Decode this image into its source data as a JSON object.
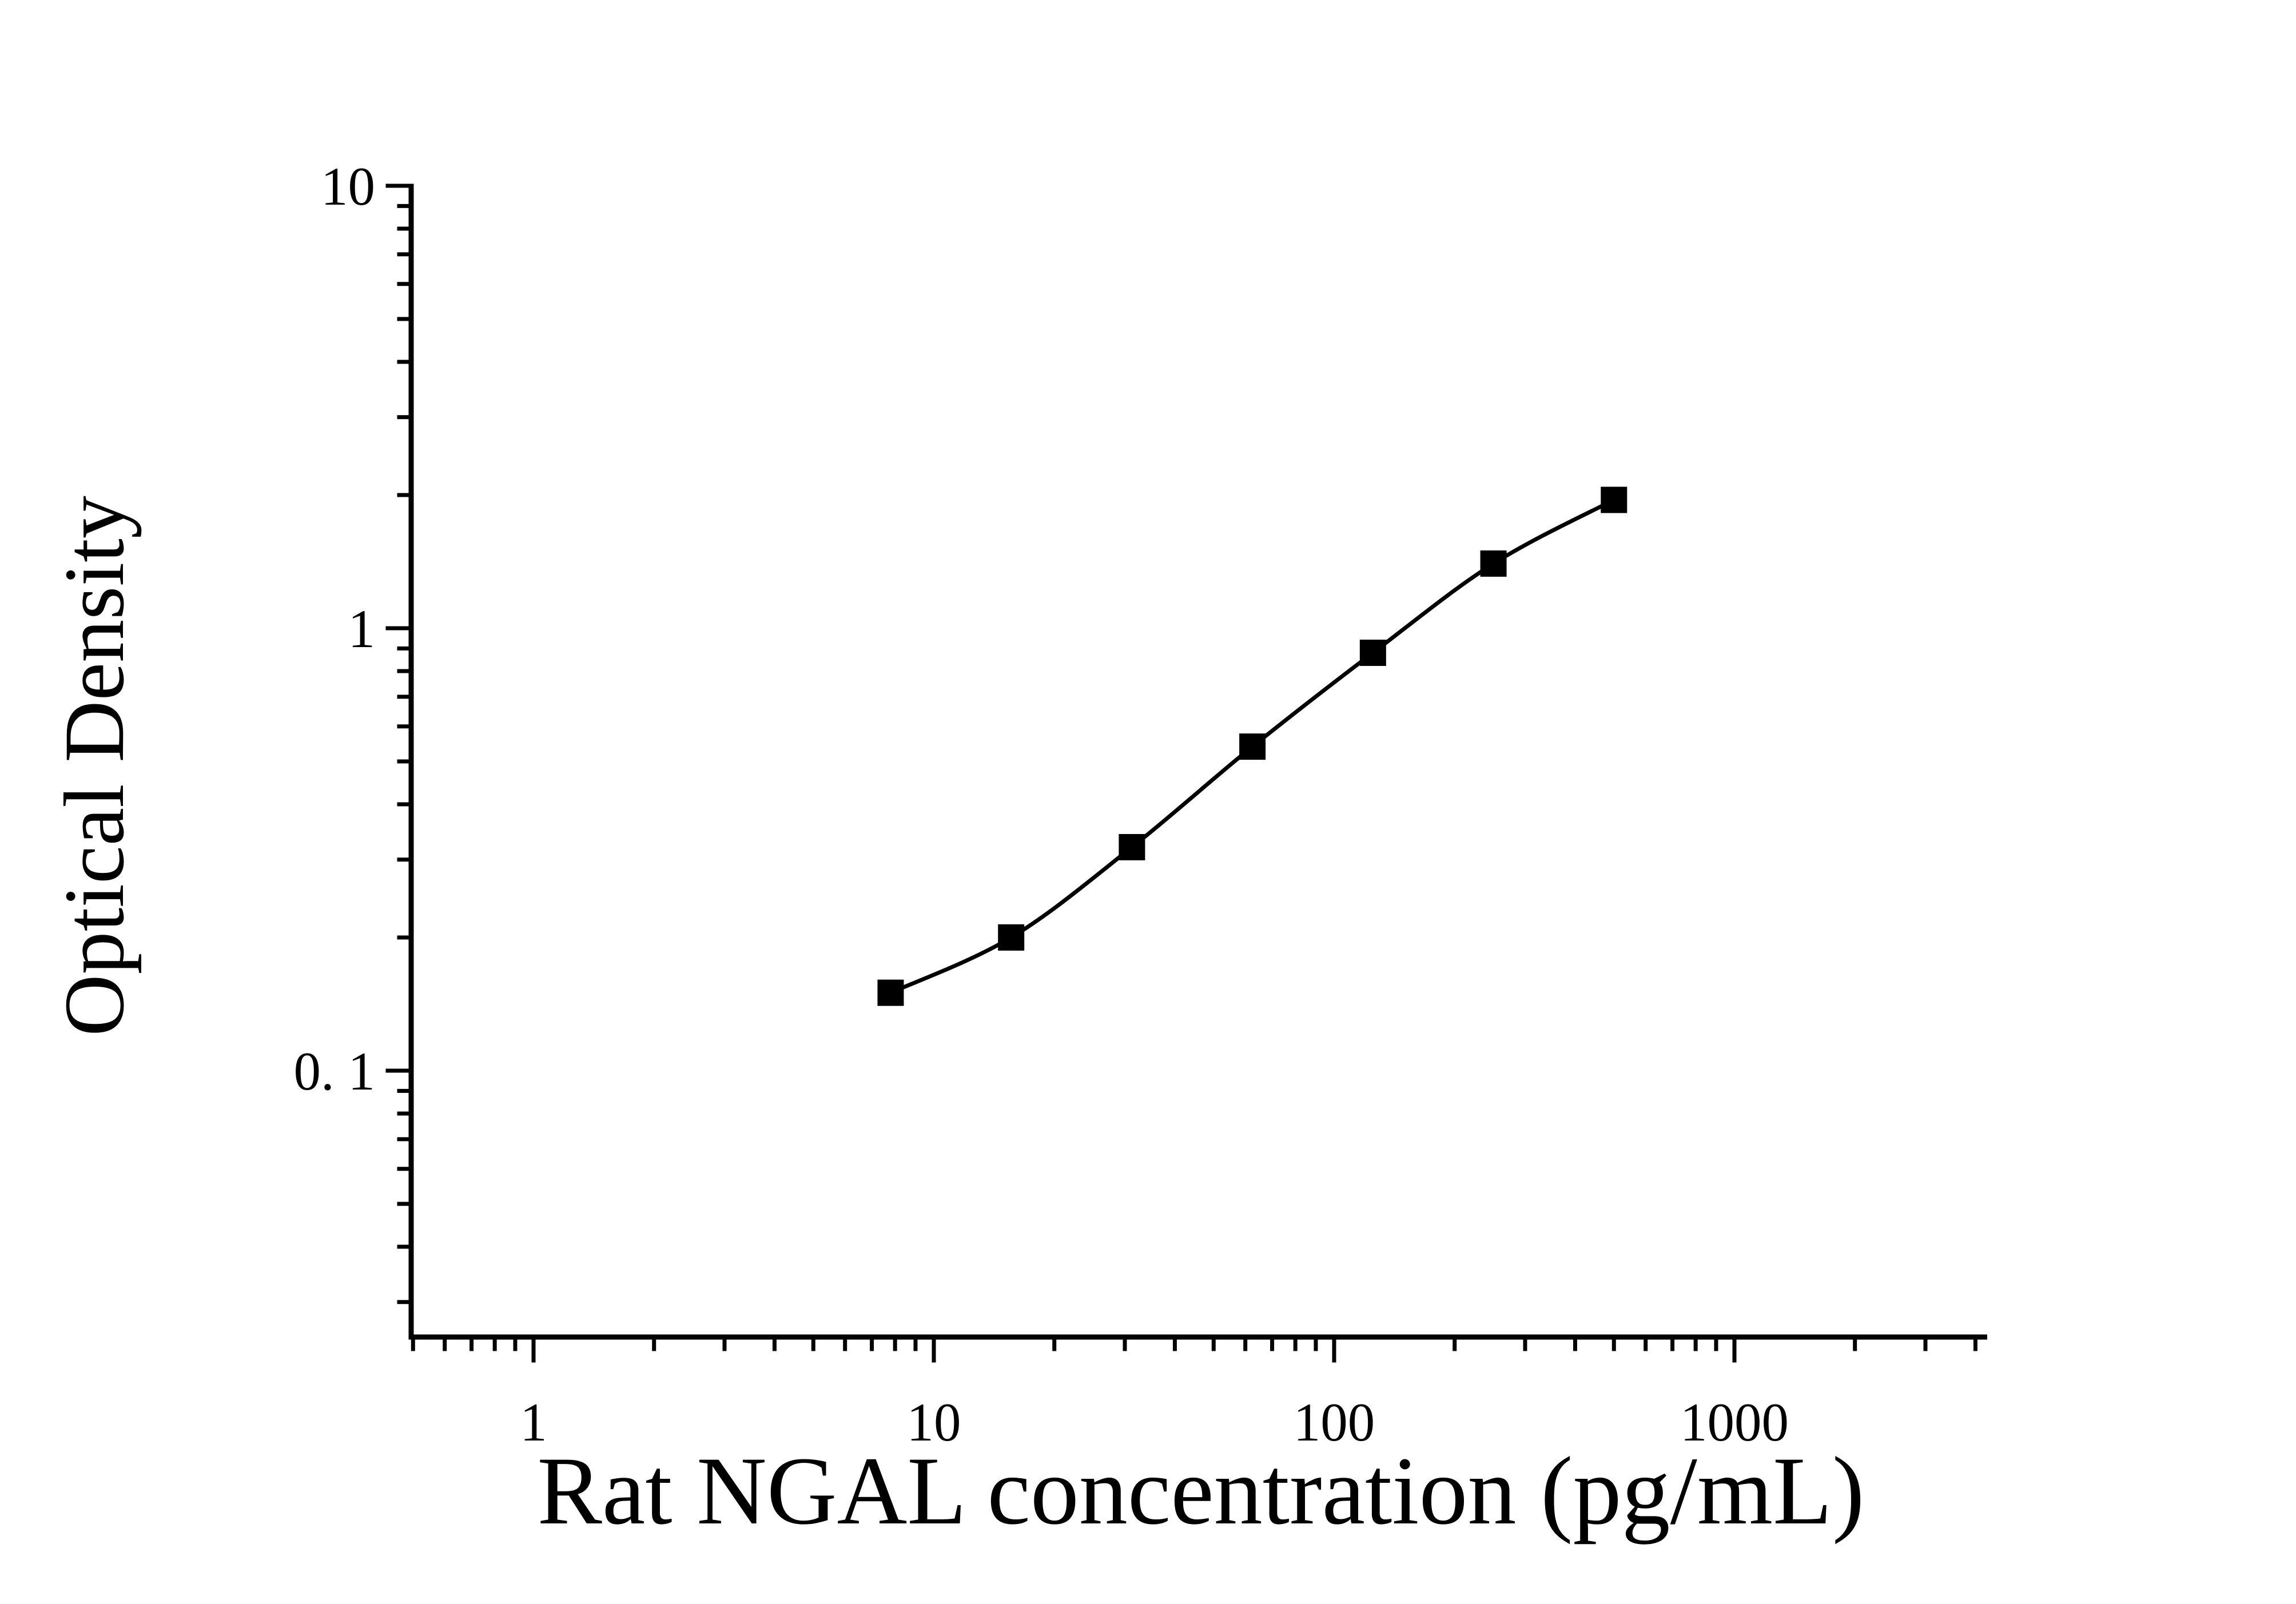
{
  "chart_data": {
    "type": "line",
    "title": "",
    "xlabel": "Rat NGAL concentration (pg/mL)",
    "ylabel": "Optical Density",
    "x_scale": "log",
    "y_scale": "log",
    "series": [
      {
        "name": "standard-curve",
        "marker": "filled-square",
        "color": "#000000",
        "x": [
          7.8,
          15.6,
          31.25,
          62.5,
          125,
          250,
          500
        ],
        "y": [
          0.15,
          0.2,
          0.32,
          0.54,
          0.88,
          1.4,
          1.95
        ]
      }
    ],
    "x_major_ticks": [
      {
        "value": 1,
        "label": "1"
      },
      {
        "value": 10,
        "label": "10"
      },
      {
        "value": 100,
        "label": "100"
      },
      {
        "value": 1000,
        "label": "1000"
      }
    ],
    "y_major_ticks": [
      {
        "value": 0.1,
        "label": "0. 1"
      },
      {
        "value": 1,
        "label": "1"
      },
      {
        "value": 10,
        "label": "10"
      }
    ],
    "x_range": [
      0.5,
      4000
    ],
    "y_range": [
      0.025,
      10
    ],
    "grid": false,
    "legend": false,
    "background_color": "#ffffff",
    "axis_color": "#000000"
  }
}
